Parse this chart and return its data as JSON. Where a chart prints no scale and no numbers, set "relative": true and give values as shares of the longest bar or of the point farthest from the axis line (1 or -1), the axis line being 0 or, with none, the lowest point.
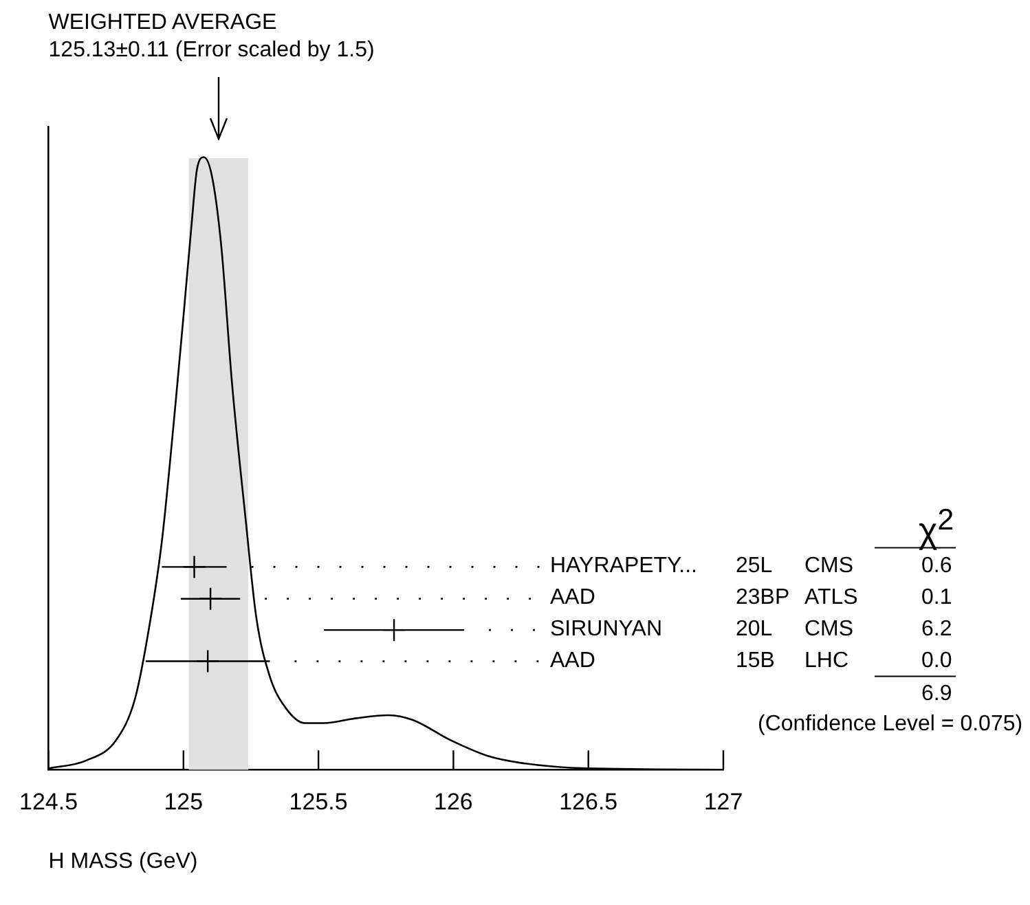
{
  "chart_data": {
    "type": "line",
    "relative": true,
    "xlabel": "H MASS (GeV)",
    "xlim": [
      124.5,
      127
    ],
    "xticks": [
      124.5,
      125,
      125.5,
      126,
      126.5,
      127
    ],
    "tick_labels": "x",
    "grid": false,
    "legend": false,
    "bands": [
      {
        "axis": "x",
        "from": 125.02,
        "to": 125.24,
        "color": "#e0e0e0"
      }
    ],
    "annotations": [
      "WEIGHTED AVERAGE",
      "125.13±0.11 (Error scaled by 1.5)",
      "χ$^{2}$",
      "HAYRAPETY...",
      "25L",
      "CMS",
      "0.6",
      "AAD",
      "23BP",
      "ATLS",
      "0.1",
      "SIRUNYAN",
      "20L",
      "CMS",
      "6.2",
      "AAD",
      "15B",
      "LHC",
      "0.0",
      "6.9",
      "(Confidence Level = 0.075)"
    ],
    "series": [
      {
        "color": "#000000",
        "marker": "none",
        "x": [
          124.5,
          124.64,
          124.75,
          124.82,
          124.87,
          124.92,
          124.97,
          125.0,
          125.03,
          125.05,
          125.075,
          125.105,
          125.14,
          125.18,
          125.23,
          125.27,
          125.32,
          125.38,
          125.45,
          125.52,
          125.64,
          125.76,
          125.85,
          125.99,
          126.13,
          126.25,
          126.5,
          127
        ],
        "values": [
          0.002,
          0.015,
          0.048,
          0.115,
          0.225,
          0.373,
          0.595,
          0.74,
          0.89,
          0.98,
          1,
          0.97,
          0.855,
          0.63,
          0.41,
          0.248,
          0.152,
          0.1,
          0.076,
          0.076,
          0.084,
          0.089,
          0.081,
          0.048,
          0.022,
          0.011,
          0.002,
          0
        ]
      },
      {
        "type": "scatter",
        "color": "#000000",
        "marker": "cross",
        "x": [
          125.04,
          125.1,
          125.78,
          125.09
        ],
        "values": [
          0.331,
          0.279,
          0.228,
          0.177
        ],
        "xerrors": [
          0.12,
          0.11,
          0.26,
          0.23
        ]
      }
    ]
  }
}
